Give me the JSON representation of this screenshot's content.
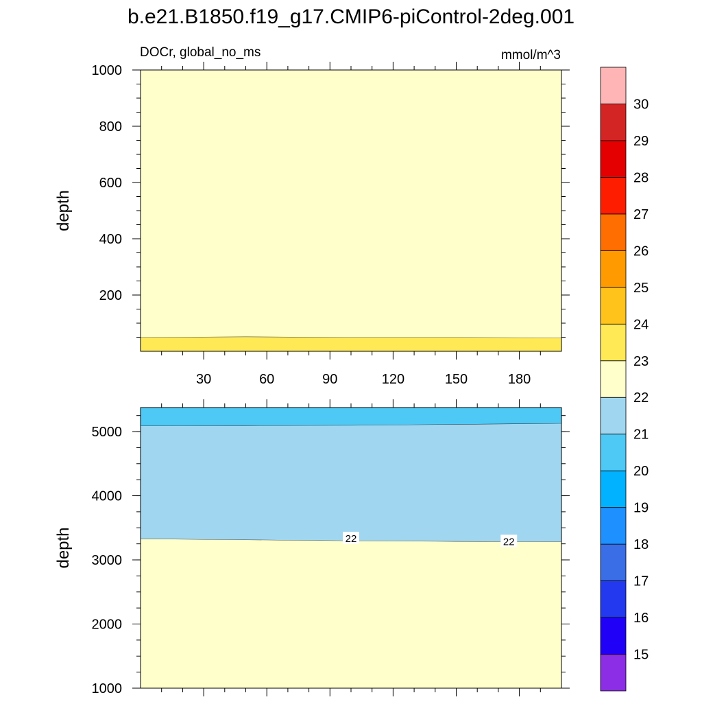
{
  "title": "b.e21.B1850.f19_g17.CMIP6-piControl-2deg.001",
  "left_string": "DOCr, global_no_ms",
  "right_string": "mmol/m^3",
  "colorbar": {
    "levels": [
      "15",
      "16",
      "17",
      "18",
      "19",
      "20",
      "21",
      "22",
      "23",
      "24",
      "25",
      "26",
      "27",
      "28",
      "29",
      "30"
    ],
    "colors": [
      "#8b2ee6",
      "#2100f8",
      "#2239f0",
      "#3a6ee6",
      "#1e90ff",
      "#00b2ff",
      "#4ec8f5",
      "#a0d6f0",
      "#ffffcc",
      "#ffe955",
      "#ffc31c",
      "#ff9b00",
      "#ff6e00",
      "#ff1d00",
      "#e40000",
      "#d42525",
      "#ffb5b5"
    ]
  },
  "chart_data": [
    {
      "type": "contour",
      "panel": "upper",
      "ylabel": "depth",
      "x_ticks": [
        "30",
        "60",
        "90",
        "120",
        "150",
        "180"
      ],
      "y_ticks": [
        "200",
        "400",
        "600",
        "800",
        "1000"
      ],
      "xlim": [
        0,
        200
      ],
      "ylim": [
        1000,
        0
      ],
      "series": [
        {
          "fill": "23-24",
          "color": "#ffe955",
          "depth_top": 0,
          "depth_bottom": [
            50,
            52,
            50,
            50,
            48
          ]
        },
        {
          "fill": "22-23",
          "color": "#ffffcc",
          "depth_top": [
            50,
            52,
            50,
            50,
            48
          ],
          "depth_bottom": 1000
        }
      ],
      "x_samples": [
        0,
        50,
        100,
        150,
        200
      ]
    },
    {
      "type": "contour",
      "panel": "lower",
      "ylabel": "depth",
      "x_ticks": [
        "30",
        "60",
        "90",
        "120",
        "150",
        "180"
      ],
      "y_ticks": [
        "1000",
        "2000",
        "3000",
        "4000",
        "5000"
      ],
      "xlim": [
        0,
        200
      ],
      "ylim": [
        5375,
        1000
      ],
      "series": [
        {
          "fill": "22-23",
          "color": "#ffffcc",
          "depth_top": 1000,
          "depth_bottom": [
            3330,
            3315,
            3300,
            3290,
            3285
          ]
        },
        {
          "fill": "21-22",
          "color": "#a0d6f0",
          "depth_top": [
            3330,
            3315,
            3300,
            3290,
            3285
          ],
          "depth_bottom": [
            5090,
            5095,
            5100,
            5115,
            5130
          ]
        },
        {
          "fill": "20-21",
          "color": "#4ec8f5",
          "depth_top": [
            5090,
            5095,
            5100,
            5115,
            5130
          ],
          "depth_bottom": 5375
        }
      ],
      "x_samples": [
        0,
        50,
        100,
        150,
        200
      ],
      "contour_labels": [
        {
          "text": "22",
          "x": 100,
          "depth": 3330
        },
        {
          "text": "22",
          "x": 175,
          "depth": 3285
        }
      ]
    }
  ]
}
